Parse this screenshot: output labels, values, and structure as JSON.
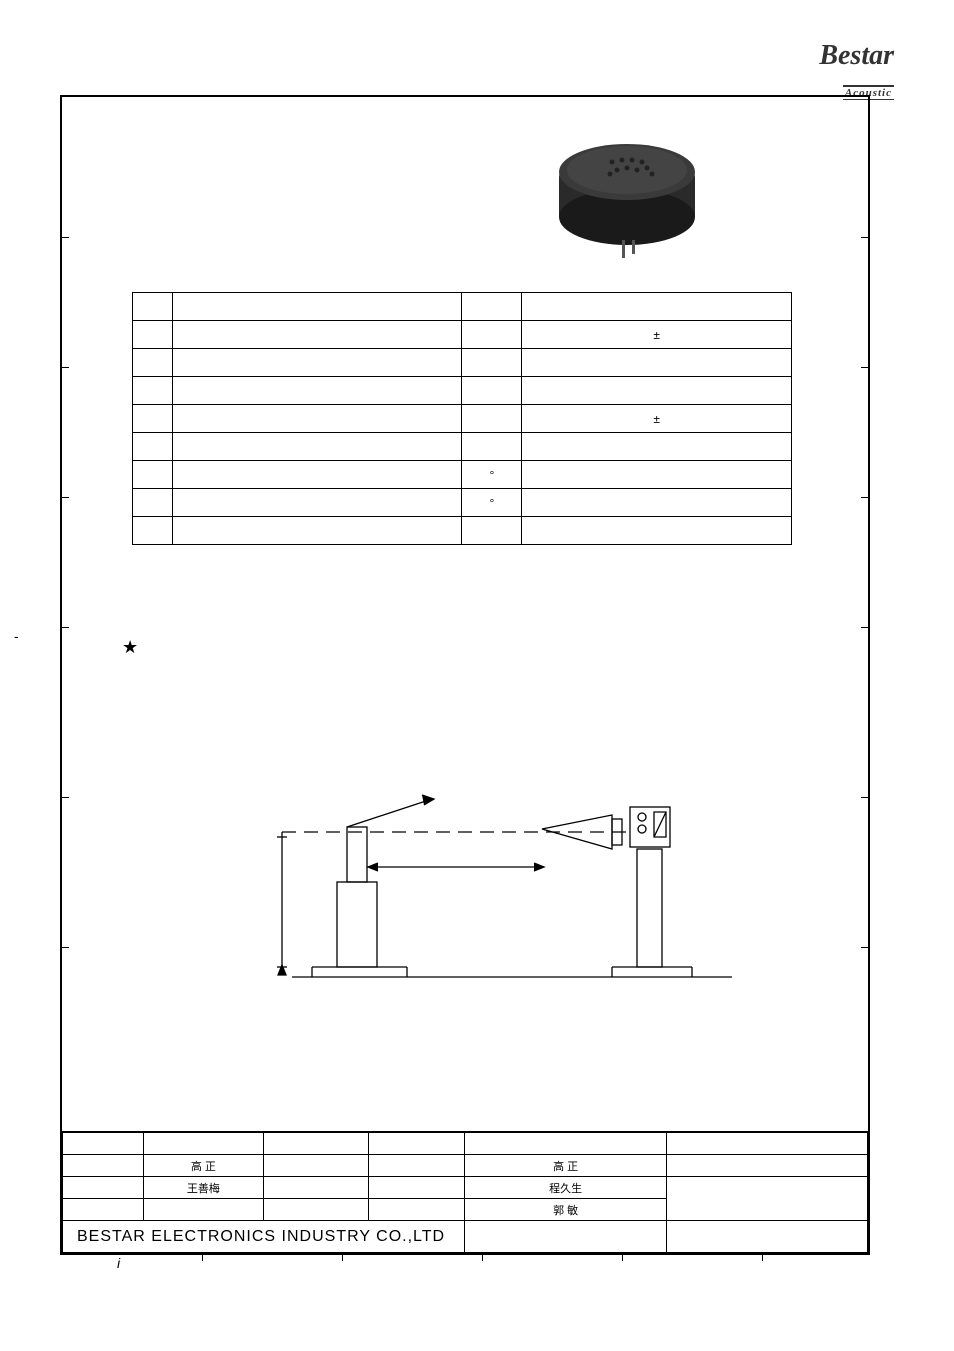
{
  "logo": {
    "main": "Bestar",
    "sub": "Acoustic"
  },
  "specs": {
    "rows": [
      {
        "num": "",
        "param": "",
        "unit": "",
        "value": ""
      },
      {
        "num": "",
        "param": "",
        "unit": "",
        "value": "±"
      },
      {
        "num": "",
        "param": "",
        "unit": "",
        "value": ""
      },
      {
        "num": "",
        "param": "",
        "unit": "",
        "value": ""
      },
      {
        "num": "",
        "param": "",
        "unit": "",
        "value": "±"
      },
      {
        "num": "",
        "param": "",
        "unit": "",
        "value": ""
      },
      {
        "num": "",
        "param": "",
        "unit": "°",
        "value": ""
      },
      {
        "num": "",
        "param": "",
        "unit": "°",
        "value": ""
      },
      {
        "num": "",
        "param": "",
        "unit": "",
        "value": ""
      }
    ]
  },
  "star": "★",
  "title_block": {
    "row1": {
      "c1": "",
      "c2": "高 正",
      "c3": "",
      "c4": "",
      "c5": "高 正",
      "c6": ""
    },
    "row2": {
      "c1": "",
      "c2": "王善梅",
      "c3": "",
      "c4": "",
      "c5": "程久生",
      "c6": ""
    },
    "row3": {
      "c1": "",
      "c2": "",
      "c3": "",
      "c4": "",
      "c5": "郭 敏",
      "c6": ""
    },
    "company": "BESTAR ELECTRONICS INDUSTRY CO.,LTD"
  },
  "buzzer": {
    "body_color": "#3a3a3a",
    "highlight_color": "#555555"
  },
  "diagram": {
    "stroke": "#000000",
    "stroke_width": 1.2
  }
}
